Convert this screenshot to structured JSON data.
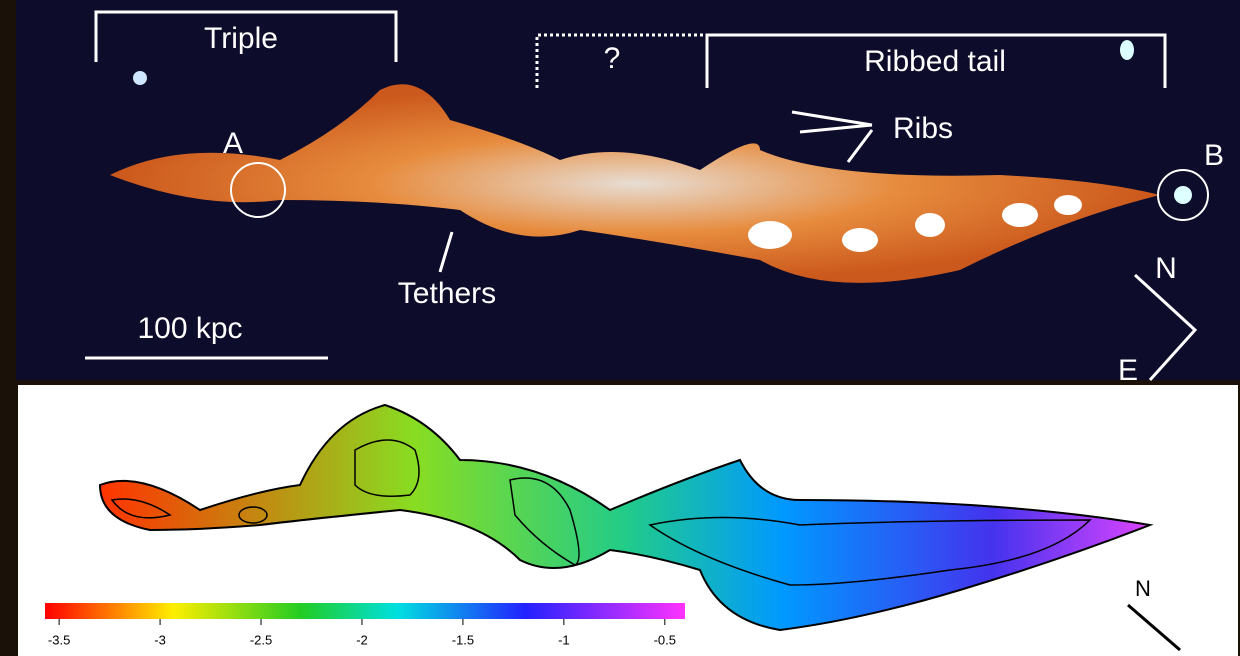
{
  "top_panel": {
    "labels": {
      "triple": "Triple",
      "question": "?",
      "ribbed_tail": "Ribbed tail",
      "ribs": "Ribs",
      "a": "A",
      "b": "B",
      "tethers": "Tethers",
      "scale": "100 kpc",
      "north": "N",
      "east": "E"
    }
  },
  "bottom_panel": {
    "north": "N",
    "colorbar": {
      "lim": [
        -3.57,
        -0.4
      ],
      "ticks": [
        -3.5,
        -3,
        -2.5,
        -2,
        -1.5,
        -1,
        -0.5
      ]
    }
  }
}
